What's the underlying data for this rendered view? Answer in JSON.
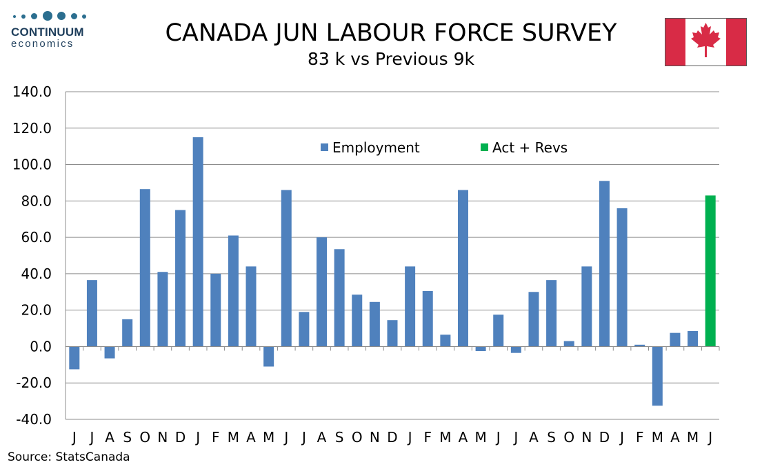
{
  "logo": {
    "name": "CONTINUUM",
    "sub": "economics"
  },
  "title": "CANADA JUN LABOUR FORCE SURVEY",
  "subtitle": "83 k vs Previous 9k",
  "source": "Source: StatsCanada",
  "colors": {
    "employment": "#4f81bd",
    "act_revs": "#00b050",
    "flag_red": "#d82b46"
  },
  "chart_data": {
    "type": "bar",
    "title": "CANADA JUN LABOUR FORCE SURVEY",
    "xlabel": "",
    "ylabel": "",
    "ylim": [
      -40,
      140
    ],
    "yticks": [
      "140.0",
      "120.0",
      "100.0",
      "80.0",
      "60.0",
      "40.0",
      "20.0",
      "0.0",
      "-20.0",
      "-40.0"
    ],
    "grid": true,
    "legend_position": "top-center",
    "categories": [
      "J",
      "J",
      "A",
      "S",
      "O",
      "N",
      "D",
      "J",
      "F",
      "M",
      "A",
      "M",
      "J",
      "J",
      "A",
      "S",
      "O",
      "N",
      "D",
      "J",
      "F",
      "M",
      "A",
      "M",
      "J",
      "J",
      "A",
      "S",
      "O",
      "N",
      "D",
      "J",
      "F",
      "M",
      "A",
      "M",
      "J"
    ],
    "series": [
      {
        "name": "Employment",
        "values": [
          -12.5,
          36.5,
          -6.5,
          15.0,
          86.5,
          41.0,
          75.0,
          115.0,
          40.0,
          61.0,
          44.0,
          -11.0,
          86.0,
          19.0,
          60.0,
          53.5,
          28.5,
          24.5,
          14.5,
          44.0,
          30.5,
          6.5,
          86.0,
          -2.5,
          17.5,
          -3.5,
          30.0,
          36.5,
          3.0,
          44.0,
          91.0,
          76.0,
          1.0,
          -32.5,
          7.5,
          8.5,
          null
        ]
      },
      {
        "name": "Act + Revs",
        "values": [
          null,
          null,
          null,
          null,
          null,
          null,
          null,
          null,
          null,
          null,
          null,
          null,
          null,
          null,
          null,
          null,
          null,
          null,
          null,
          null,
          null,
          null,
          null,
          null,
          null,
          null,
          null,
          null,
          null,
          null,
          null,
          null,
          null,
          null,
          null,
          null,
          83.0
        ]
      }
    ]
  }
}
